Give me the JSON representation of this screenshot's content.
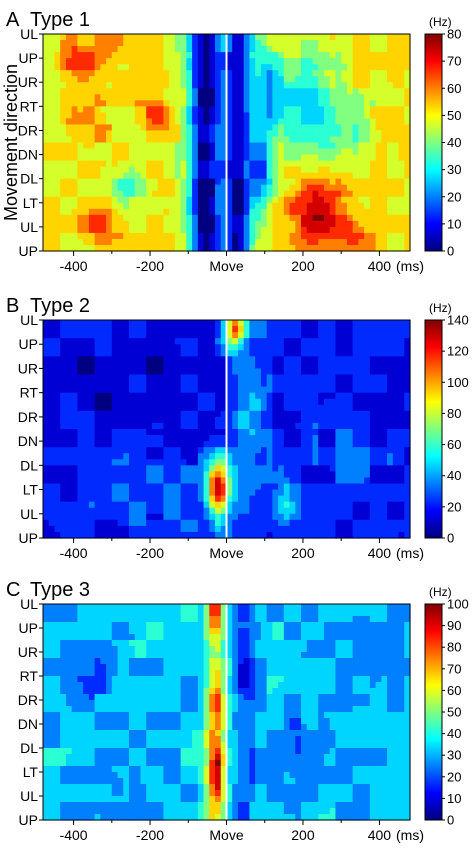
{
  "chart_data": [
    {
      "type": "heatmap",
      "panel_letter": "A",
      "title": "Type 1",
      "ylabel": "Movement direction",
      "xlabel": "(ms)",
      "x_range": [
        -480,
        480
      ],
      "x_ticks": [
        -400,
        -200,
        "Move",
        200,
        400
      ],
      "y_categories": [
        "UL",
        "UP",
        "UR",
        "RT",
        "DR",
        "DN",
        "DL",
        "LT",
        "UL",
        "UP"
      ],
      "colorbar": {
        "unit": "(Hz)",
        "min": 0,
        "max": 80,
        "ticks": [
          0,
          10,
          20,
          30,
          40,
          50,
          60,
          70,
          80
        ]
      },
      "zmax": 80,
      "baseline": 50,
      "features": [
        {
          "t": -55,
          "dir": 4.5,
          "width": 45,
          "height": 30,
          "amp": -50
        },
        {
          "t": 30,
          "dir": 4.5,
          "width": 35,
          "height": 30,
          "amp": -46
        },
        {
          "t": 90,
          "dir": 5.5,
          "width": 30,
          "height": 2.2,
          "amp": -30
        },
        {
          "t": 105,
          "dir": 2.0,
          "width": 40,
          "height": 1.6,
          "amp": -20
        },
        {
          "t": 210,
          "dir": 3.0,
          "width": 90,
          "height": 2.6,
          "amp": -20
        },
        {
          "t": 240,
          "dir": 7.3,
          "width": 70,
          "height": 1.4,
          "amp": 28
        },
        {
          "t": 350,
          "dir": 8.5,
          "width": 60,
          "height": 1.0,
          "amp": 10
        },
        {
          "t": -380,
          "dir": 1.2,
          "width": 50,
          "height": 0.9,
          "amp": 18
        },
        {
          "t": -300,
          "dir": 0.2,
          "width": 60,
          "height": 0.9,
          "amp": 10
        },
        {
          "t": -180,
          "dir": 3.3,
          "width": 50,
          "height": 0.7,
          "amp": 12
        },
        {
          "t": -360,
          "dir": 3.8,
          "width": 55,
          "height": 1.0,
          "amp": 10
        },
        {
          "t": -330,
          "dir": 7.8,
          "width": 60,
          "height": 0.9,
          "amp": 12
        },
        {
          "t": -260,
          "dir": 6.3,
          "width": 45,
          "height": 0.9,
          "amp": -12
        },
        {
          "t": 330,
          "dir": 4.5,
          "width": 80,
          "height": 1.6,
          "amp": -8
        }
      ]
    },
    {
      "type": "heatmap",
      "panel_letter": "B",
      "title": "Type 2",
      "xlabel": "(ms)",
      "x_range": [
        -480,
        480
      ],
      "x_ticks": [
        -400,
        -200,
        "Move",
        200,
        400
      ],
      "y_categories": [
        "UL",
        "UP",
        "UR",
        "RT",
        "DR",
        "DN",
        "DL",
        "LT",
        "UL",
        "UP"
      ],
      "colorbar": {
        "unit": "(Hz)",
        "min": 0,
        "max": 140,
        "ticks": [
          0,
          20,
          40,
          60,
          80,
          100,
          120,
          140
        ]
      },
      "zmax": 140,
      "baseline": 18,
      "features": [
        {
          "t": -20,
          "dir": 7.0,
          "width": 30,
          "height": 1.2,
          "amp": 110
        },
        {
          "t": 20,
          "dir": 0.3,
          "width": 28,
          "height": 0.9,
          "amp": 85
        },
        {
          "t": 60,
          "dir": 3.5,
          "width": 50,
          "height": 3.0,
          "amp": 25
        },
        {
          "t": 160,
          "dir": 4.0,
          "width": 40,
          "height": 1.3,
          "amp": -8
        },
        {
          "t": 150,
          "dir": 7.5,
          "width": 30,
          "height": 1.0,
          "amp": 28
        },
        {
          "t": -200,
          "dir": 7.0,
          "width": 200,
          "height": 2.0,
          "amp": 10
        },
        {
          "t": -300,
          "dir": 2.5,
          "width": 200,
          "height": 2.5,
          "amp": -8
        },
        {
          "t": 300,
          "dir": 6.0,
          "width": 150,
          "height": 3.0,
          "amp": 8
        }
      ]
    },
    {
      "type": "heatmap",
      "panel_letter": "C",
      "title": "Type 3",
      "xlabel": "(ms)",
      "x_range": [
        -480,
        480
      ],
      "x_ticks": [
        -400,
        -200,
        "Move",
        200,
        400
      ],
      "y_categories": [
        "UL",
        "UP",
        "UR",
        "RT",
        "DR",
        "DN",
        "DL",
        "LT",
        "UL",
        "UP"
      ],
      "colorbar": {
        "unit": "(Hz)",
        "min": 0,
        "max": 100,
        "ticks": [
          0,
          10,
          20,
          30,
          40,
          50,
          60,
          70,
          80,
          90,
          100
        ]
      },
      "zmax": 100,
      "baseline": 32,
      "features": [
        {
          "t": -30,
          "dir": 4.5,
          "width": 30,
          "height": 25,
          "amp": 28
        },
        {
          "t": -25,
          "dir": 7.0,
          "width": 18,
          "height": 1.3,
          "amp": 40
        },
        {
          "t": -30,
          "dir": 0.3,
          "width": 16,
          "height": 0.8,
          "amp": 35
        },
        {
          "t": -30,
          "dir": 4.2,
          "width": 20,
          "height": 1.0,
          "amp": 20
        },
        {
          "t": 45,
          "dir": 3.5,
          "width": 28,
          "height": 25,
          "amp": -12
        },
        {
          "t": 45,
          "dir": 2.8,
          "width": 22,
          "height": 1.2,
          "amp": -14
        },
        {
          "t": 200,
          "dir": 6.0,
          "width": 70,
          "height": 1.8,
          "amp": -10
        },
        {
          "t": -350,
          "dir": 3.0,
          "width": 70,
          "height": 1.5,
          "amp": -8
        },
        {
          "t": -300,
          "dir": 7.5,
          "width": 80,
          "height": 1.5,
          "amp": -6
        },
        {
          "t": 350,
          "dir": 2.0,
          "width": 80,
          "height": 2.0,
          "amp": -5
        }
      ]
    }
  ]
}
